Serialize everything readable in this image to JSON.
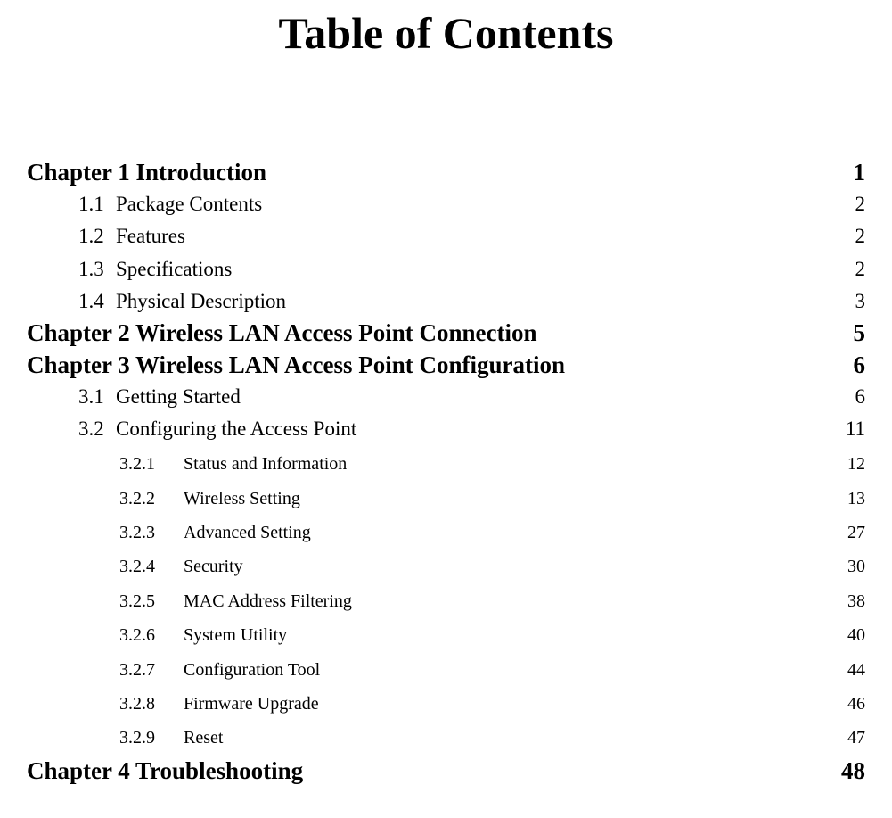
{
  "title": "Table of Contents",
  "text_color": "#000000",
  "background_color": "#ffffff",
  "font_family": "Times New Roman",
  "title_fontsize": 50,
  "level1_fontsize": 27,
  "level2_fontsize": 23,
  "level3_fontsize": 20,
  "entries": [
    {
      "level": 1,
      "num": "Chapter 1",
      "text": "Introduction",
      "page": "1"
    },
    {
      "level": 2,
      "num": "1.1",
      "text": "Package Contents",
      "page": "2"
    },
    {
      "level": 2,
      "num": "1.2",
      "text": "Features",
      "page": "2"
    },
    {
      "level": 2,
      "num": "1.3",
      "text": "Specifications",
      "page": "2"
    },
    {
      "level": 2,
      "num": "1.4",
      "text": "Physical Description",
      "page": "3"
    },
    {
      "level": 1,
      "num": "Chapter 2",
      "text": "Wireless LAN Access Point Connection",
      "page": "5"
    },
    {
      "level": 1,
      "num": "Chapter 3",
      "text": "Wireless LAN Access Point Configuration",
      "page": "6"
    },
    {
      "level": 2,
      "num": "3.1",
      "text": "Getting Started",
      "page": "6"
    },
    {
      "level": 2,
      "num": "3.2",
      "text": "Configuring the Access Point",
      "page": "11"
    },
    {
      "level": 3,
      "num": "3.2.1",
      "text": "Status and Information",
      "page": "12"
    },
    {
      "level": 3,
      "num": "3.2.2",
      "text": "Wireless Setting",
      "page": "13"
    },
    {
      "level": 3,
      "num": "3.2.3",
      "text": "Advanced Setting",
      "page": "27"
    },
    {
      "level": 3,
      "num": "3.2.4",
      "text": "Security",
      "page": "30"
    },
    {
      "level": 3,
      "num": "3.2.5",
      "text": "MAC Address Filtering",
      "page": "38"
    },
    {
      "level": 3,
      "num": "3.2.6",
      "text": "System Utility",
      "page": "40"
    },
    {
      "level": 3,
      "num": "3.2.7",
      "text": "Configuration Tool",
      "page": "44"
    },
    {
      "level": 3,
      "num": "3.2.8",
      "text": "Firmware Upgrade",
      "page": "46"
    },
    {
      "level": 3,
      "num": "3.2.9",
      "text": "Reset",
      "page": "47"
    },
    {
      "level": 1,
      "num": "Chapter 4",
      "text": "Troubleshooting",
      "page": "48"
    }
  ]
}
